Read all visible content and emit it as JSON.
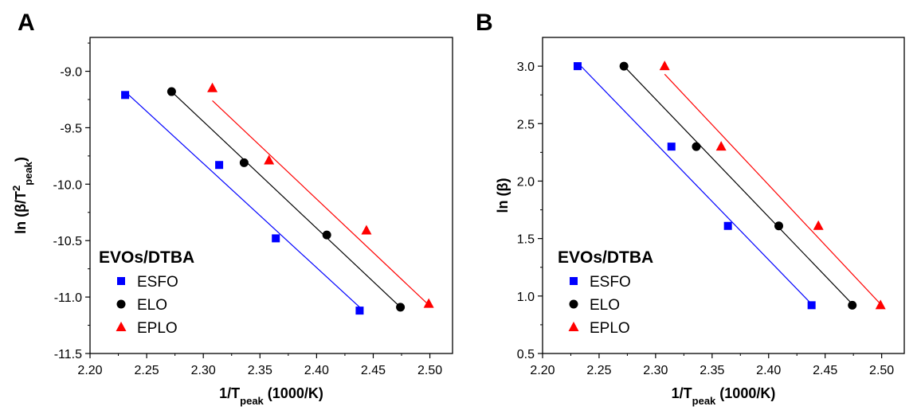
{
  "chart_data": [
    {
      "panel_label": "A",
      "type": "scatter",
      "xlabel": {
        "main": "1/T",
        "sub": "peak",
        "tail": " (1000/K)"
      },
      "ylabel": {
        "pre": "ln (β/T",
        "sup": "2",
        "sub": "peak",
        "post": ")"
      },
      "xlim": [
        2.2,
        2.52
      ],
      "ylim": [
        -11.5,
        -8.7
      ],
      "xticks": [
        "2.20",
        "2.25",
        "2.30",
        "2.35",
        "2.40",
        "2.45",
        "2.50"
      ],
      "yticks": [
        "-11.5",
        "-11.0",
        "-10.5",
        "-10.0",
        "-9.5",
        "-9.0"
      ],
      "legend": {
        "title": "EVOs/DTBA",
        "position": "bottom-left"
      },
      "series": [
        {
          "name": "ESFO",
          "color": "#0000ff",
          "marker": "square",
          "x": [
            2.231,
            2.314,
            2.364,
            2.438
          ],
          "y": [
            -9.21,
            -9.83,
            -10.48,
            -11.12
          ],
          "fit": {
            "x": [
              2.231,
              2.438
            ],
            "y": [
              -9.18,
              -11.09
            ]
          }
        },
        {
          "name": "ELO",
          "color": "#000000",
          "marker": "circle",
          "x": [
            2.272,
            2.336,
            2.409,
            2.474
          ],
          "y": [
            -9.18,
            -9.81,
            -10.45,
            -11.09
          ],
          "fit": {
            "x": [
              2.272,
              2.474
            ],
            "y": [
              -9.18,
              -11.09
            ]
          }
        },
        {
          "name": "EPLO",
          "color": "#ff0000",
          "marker": "triangle",
          "x": [
            2.308,
            2.358,
            2.444,
            2.499
          ],
          "y": [
            -9.15,
            -9.79,
            -10.41,
            -11.06
          ],
          "fit": {
            "x": [
              2.308,
              2.499
            ],
            "y": [
              -9.26,
              -11.07
            ]
          }
        }
      ]
    },
    {
      "panel_label": "B",
      "type": "scatter",
      "xlabel": {
        "main": "1/T",
        "sub": "peak",
        "tail": " (1000/K)"
      },
      "ylabel": {
        "pre": "ln (β)",
        "sup": "",
        "sub": "",
        "post": ""
      },
      "xlim": [
        2.2,
        2.52
      ],
      "ylim": [
        0.5,
        3.25
      ],
      "xticks": [
        "2.20",
        "2.25",
        "2.30",
        "2.35",
        "2.40",
        "2.45",
        "2.50"
      ],
      "yticks": [
        "0.5",
        "1.0",
        "1.5",
        "2.0",
        "2.5",
        "3.0"
      ],
      "legend": {
        "title": "EVOs/DTBA",
        "position": "bottom-left"
      },
      "series": [
        {
          "name": "ESFO",
          "color": "#0000ff",
          "marker": "square",
          "x": [
            2.231,
            2.314,
            2.364,
            2.438
          ],
          "y": [
            3.0,
            2.3,
            1.61,
            0.92
          ],
          "fit": {
            "x": [
              2.231,
              2.438
            ],
            "y": [
              3.03,
              0.93
            ]
          }
        },
        {
          "name": "ELO",
          "color": "#000000",
          "marker": "circle",
          "x": [
            2.272,
            2.336,
            2.409,
            2.474
          ],
          "y": [
            3.0,
            2.3,
            1.61,
            0.92
          ],
          "fit": {
            "x": [
              2.272,
              2.474
            ],
            "y": [
              3.0,
              0.93
            ]
          }
        },
        {
          "name": "EPLO",
          "color": "#ff0000",
          "marker": "triangle",
          "x": [
            2.308,
            2.358,
            2.444,
            2.499
          ],
          "y": [
            3.0,
            2.3,
            1.61,
            0.92
          ],
          "fit": {
            "x": [
              2.308,
              2.499
            ],
            "y": [
              2.93,
              0.93
            ]
          }
        }
      ]
    }
  ]
}
